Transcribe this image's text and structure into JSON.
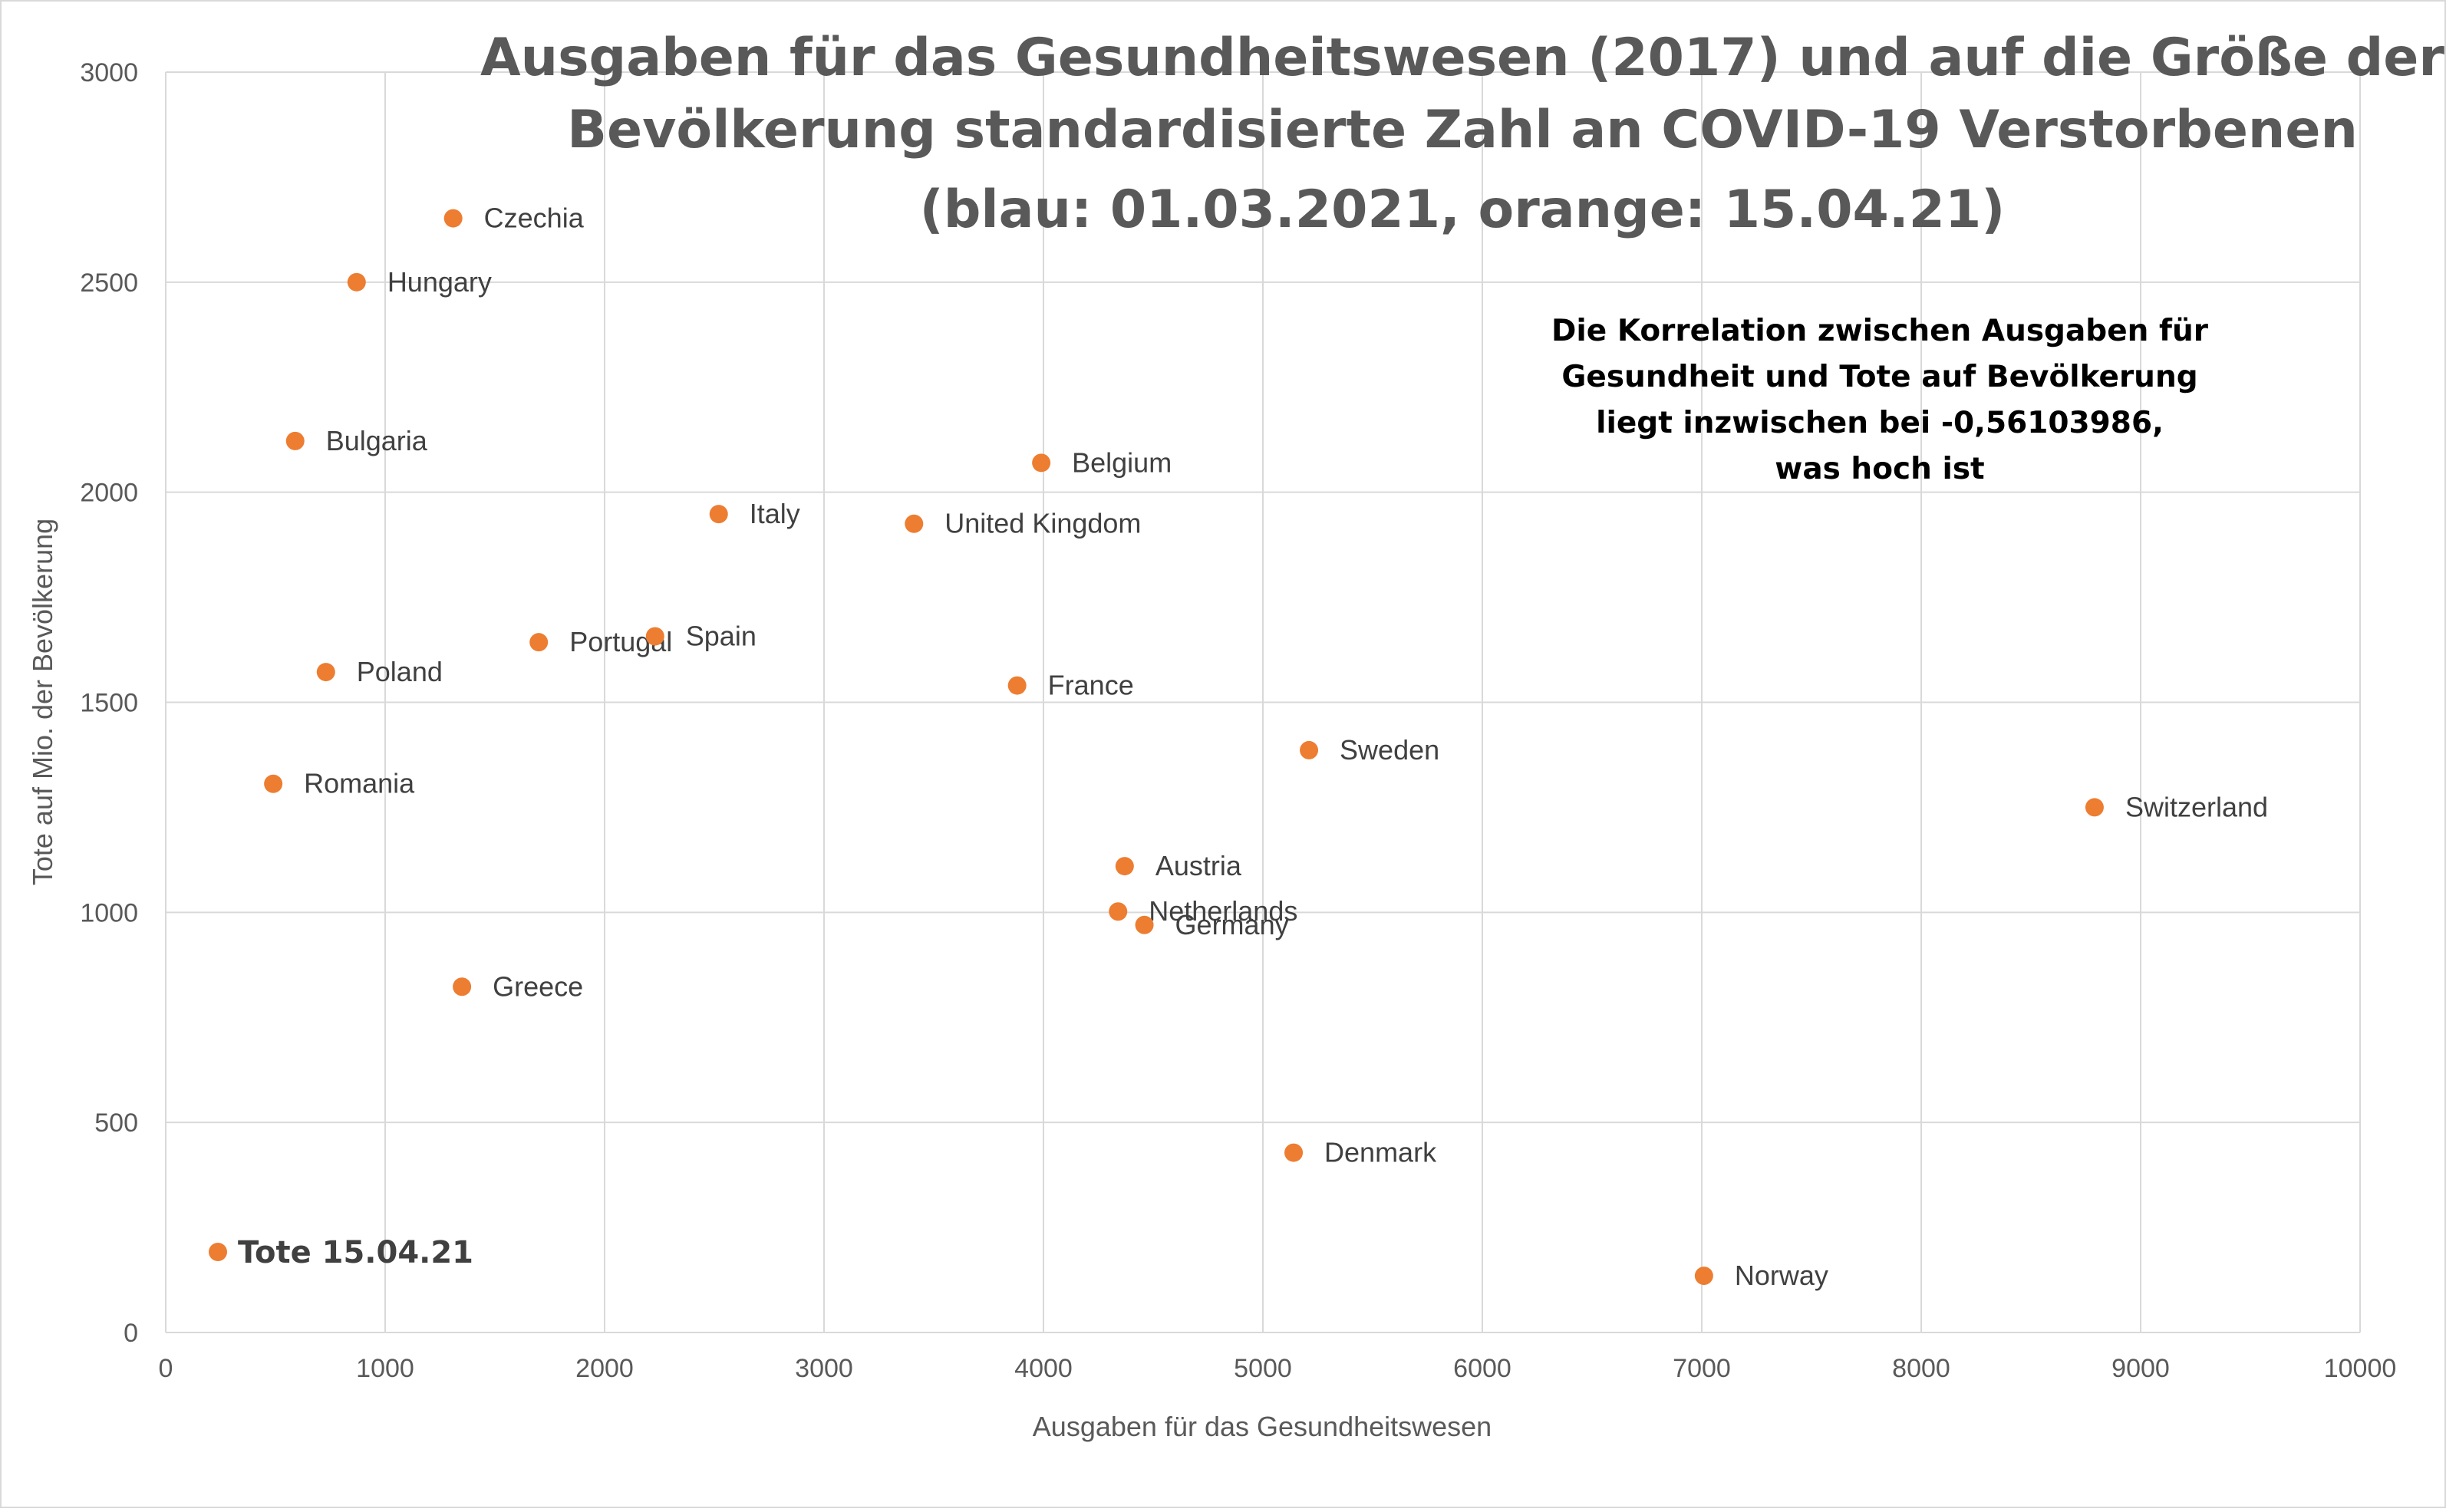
{
  "chart_data": {
    "type": "scatter",
    "title_lines": [
      "Ausgaben für das Gesundheitswesen (2017) und auf die Größe der",
      "Bevölkerung standardisierte Zahl an COVID-19 Verstorbenen",
      "(blau: 01.03.2021, orange: 15.04.21)"
    ],
    "xlabel": "Ausgaben für das Gesundheitswesen",
    "ylabel": "Tote auf Mio. der Bevölkerung",
    "xlim": [
      0,
      10000
    ],
    "ylim": [
      0,
      3000
    ],
    "xticks": [
      0,
      1000,
      2000,
      3000,
      4000,
      5000,
      6000,
      7000,
      8000,
      9000,
      10000
    ],
    "yticks": [
      0,
      500,
      1000,
      1500,
      2000,
      2500,
      3000
    ],
    "grid": true,
    "marker_color": "#ED7D31",
    "annotation_lines": [
      "Die Korrelation zwischen Ausgaben für",
      "Gesundheit und Tote auf Bevölkerung",
      "liegt inzwischen bei -0,56103986,",
      "was hoch ist"
    ],
    "legend_label": "Tote 15.04.21",
    "points": [
      {
        "label": "Czechia",
        "x": 1310,
        "y": 2652
      },
      {
        "label": "Hungary",
        "x": 870,
        "y": 2500
      },
      {
        "label": "Bulgaria",
        "x": 590,
        "y": 2122
      },
      {
        "label": "Belgium",
        "x": 3990,
        "y": 2070
      },
      {
        "label": "Italy",
        "x": 2520,
        "y": 1948
      },
      {
        "label": "United Kingdom",
        "x": 3410,
        "y": 1925
      },
      {
        "label": "Portugal",
        "x": 1700,
        "y": 1643
      },
      {
        "label": "Spain",
        "x": 2230,
        "y": 1657
      },
      {
        "label": "Poland",
        "x": 730,
        "y": 1572
      },
      {
        "label": "France",
        "x": 3880,
        "y": 1540
      },
      {
        "label": "Sweden",
        "x": 5210,
        "y": 1386
      },
      {
        "label": "Romania",
        "x": 490,
        "y": 1306
      },
      {
        "label": "Switzerland",
        "x": 8790,
        "y": 1250
      },
      {
        "label": "Austria",
        "x": 4370,
        "y": 1110
      },
      {
        "label": "Netherlands",
        "x": 4340,
        "y": 1002
      },
      {
        "label": "Germany",
        "x": 4460,
        "y": 970
      },
      {
        "label": "Greece",
        "x": 1350,
        "y": 823
      },
      {
        "label": "Denmark",
        "x": 5140,
        "y": 428
      },
      {
        "label": "Norway",
        "x": 7010,
        "y": 135
      }
    ]
  }
}
